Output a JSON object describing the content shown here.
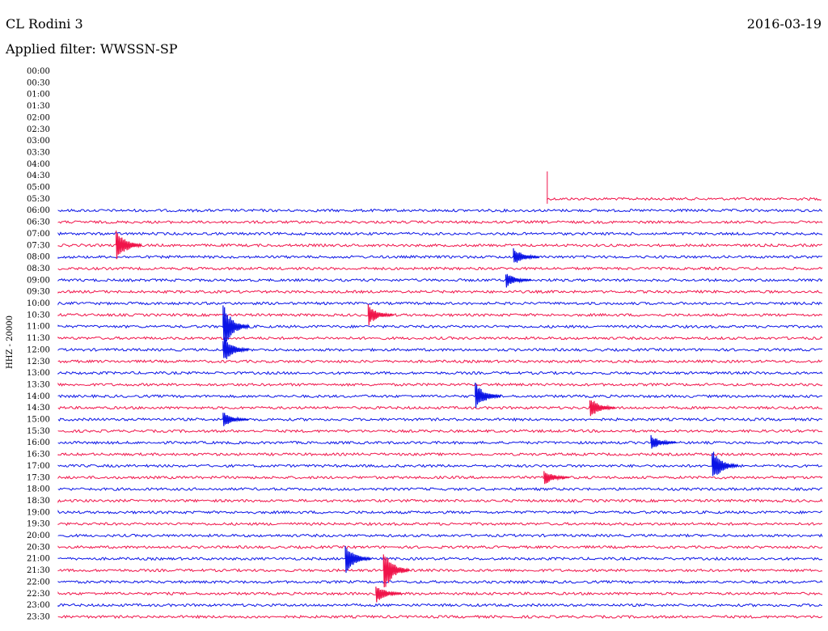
{
  "header": {
    "station": "CL Rodini 3",
    "date": "2016-03-19",
    "filter": "Applied filter: WWSSN-SP"
  },
  "colors": {
    "blue": "#0a14e6",
    "red": "#f0144a"
  },
  "chart_data": {
    "type": "line",
    "title": "CL Rodini 3",
    "ylabel": "HHZ - 20000",
    "y_tick_labels": [
      "00:00",
      "00:30",
      "01:00",
      "01:30",
      "02:00",
      "02:30",
      "03:00",
      "03:30",
      "04:00",
      "04:30",
      "05:00",
      "05:30",
      "06:00",
      "06:30",
      "07:00",
      "07:30",
      "08:00",
      "08:30",
      "09:00",
      "09:30",
      "10:00",
      "10:30",
      "11:00",
      "11:30",
      "12:00",
      "12:30",
      "13:00",
      "13:30",
      "14:00",
      "14:30",
      "15:00",
      "15:30",
      "16:00",
      "16:30",
      "17:00",
      "17:30",
      "18:00",
      "18:30",
      "19:00",
      "19:30",
      "20:00",
      "20:30",
      "21:00",
      "21:30",
      "22:00",
      "22:30",
      "23:00",
      "23:30"
    ],
    "trace_colors": [
      "blue",
      "red"
    ],
    "record_start": "05:30",
    "record_start_fraction": 0.64,
    "events": [
      {
        "row": "07:30",
        "position": 0.08,
        "amplitude": 22
      },
      {
        "row": "08:00",
        "position": 0.6,
        "amplitude": 12
      },
      {
        "row": "09:00",
        "position": 0.59,
        "amplitude": 10
      },
      {
        "row": "10:30",
        "position": 0.41,
        "amplitude": 14
      },
      {
        "row": "11:00",
        "position": 0.22,
        "amplitude": 30
      },
      {
        "row": "12:00",
        "position": 0.22,
        "amplitude": 18
      },
      {
        "row": "14:00",
        "position": 0.55,
        "amplitude": 18
      },
      {
        "row": "14:30",
        "position": 0.7,
        "amplitude": 14
      },
      {
        "row": "15:00",
        "position": 0.22,
        "amplitude": 10
      },
      {
        "row": "16:00",
        "position": 0.78,
        "amplitude": 10
      },
      {
        "row": "17:00",
        "position": 0.86,
        "amplitude": 22
      },
      {
        "row": "17:30",
        "position": 0.64,
        "amplitude": 10
      },
      {
        "row": "21:00",
        "position": 0.38,
        "amplitude": 20
      },
      {
        "row": "21:30",
        "position": 0.43,
        "amplitude": 28
      },
      {
        "row": "22:30",
        "position": 0.42,
        "amplitude": 12
      }
    ]
  }
}
